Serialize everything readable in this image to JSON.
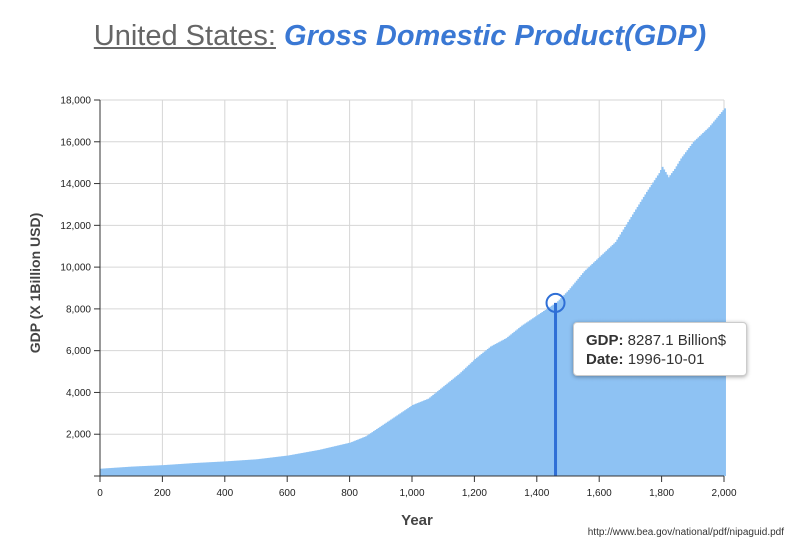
{
  "title": {
    "country": "United States:",
    "metric": "Gross Domestic Product(GDP)"
  },
  "source": "http://www.bea.gov/national/pdf/nipaguid.pdf",
  "colors": {
    "bar": "#8ec2f3",
    "bar_edge": "#77b2ec",
    "highlight": "#2f6fd6",
    "grid": "#d6d6d6"
  },
  "tooltip": {
    "gdp_label": "GDP:",
    "gdp_value": "8287.1 Billion$",
    "date_label": "Date:",
    "date_value": "1996-10-01"
  },
  "chart_data": {
    "type": "bar",
    "xlabel": "Year",
    "ylabel": "GDP (X 1Billion USD)",
    "xlim": [
      0,
      2000
    ],
    "ylim": [
      0,
      18000
    ],
    "xticks": [
      0,
      200,
      400,
      600,
      800,
      1000,
      1200,
      1400,
      1600,
      1800,
      2000
    ],
    "xtick_labels": [
      "0",
      "200",
      "400",
      "600",
      "800",
      "1,000",
      "1,200",
      "1,400",
      "1,600",
      "1,800",
      "2,000"
    ],
    "yticks": [
      2000,
      4000,
      6000,
      8000,
      10000,
      12000,
      14000,
      16000,
      18000
    ],
    "ytick_labels": [
      "2,000",
      "4,000",
      "6,000",
      "8,000",
      "10,000",
      "12,000",
      "14,000",
      "16,000",
      "18,000"
    ],
    "grid": true,
    "x": [
      0,
      100,
      200,
      300,
      400,
      500,
      600,
      700,
      800,
      850,
      900,
      950,
      1000,
      1050,
      1100,
      1150,
      1200,
      1250,
      1300,
      1350,
      1400,
      1450,
      1460,
      1500,
      1550,
      1600,
      1650,
      1700,
      1750,
      1790,
      1800,
      1820,
      1840,
      1860,
      1900,
      1950,
      2000,
      2010
    ],
    "values": [
      350,
      450,
      520,
      620,
      700,
      800,
      980,
      1250,
      1600,
      1900,
      2400,
      2900,
      3400,
      3700,
      4300,
      4900,
      5600,
      6200,
      6600,
      7200,
      7700,
      8200,
      8287.1,
      8900,
      9800,
      10500,
      11200,
      12400,
      13600,
      14500,
      14800,
      14300,
      14700,
      15200,
      16000,
      16700,
      17600,
      18000
    ],
    "highlight": {
      "x": 1460,
      "y": 8287.1
    }
  }
}
